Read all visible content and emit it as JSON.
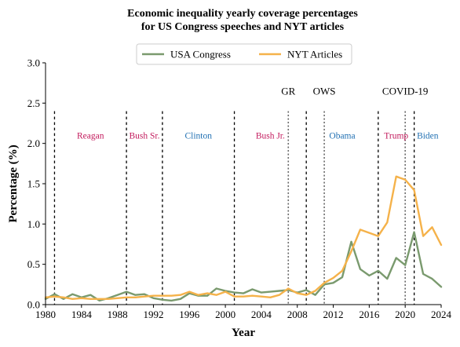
{
  "chart_data": {
    "type": "line",
    "title_line1": "Economic inequality yearly coverage percentages",
    "title_line2": "for US Congress speeches and NYT articles",
    "xlabel": "Year",
    "ylabel": "Percentage (%)",
    "xlim": [
      1980,
      2024
    ],
    "ylim": [
      0.0,
      3.0
    ],
    "xticks": [
      1980,
      1984,
      1988,
      1992,
      1996,
      2000,
      2004,
      2008,
      2012,
      2016,
      2020,
      2024
    ],
    "yticks": [
      0.0,
      0.5,
      1.0,
      1.5,
      2.0,
      2.5,
      3.0
    ],
    "ytick_labels": [
      "0.0",
      "0.5",
      "1.0",
      "1.5",
      "2.0",
      "2.5",
      "3.0"
    ],
    "legend_position": "top-center",
    "grid": false,
    "x": [
      1980,
      1981,
      1982,
      1983,
      1984,
      1985,
      1986,
      1987,
      1988,
      1989,
      1990,
      1991,
      1992,
      1993,
      1994,
      1995,
      1996,
      1997,
      1998,
      1999,
      2000,
      2001,
      2002,
      2003,
      2004,
      2005,
      2006,
      2007,
      2008,
      2009,
      2010,
      2011,
      2012,
      2013,
      2014,
      2015,
      2016,
      2017,
      2018,
      2019,
      2020,
      2021,
      2022,
      2023,
      2024
    ],
    "series": [
      {
        "name": "USA Congress",
        "color": "#7a9a6e",
        "values": [
          0.07,
          0.13,
          0.07,
          0.13,
          0.09,
          0.12,
          0.05,
          0.08,
          0.12,
          0.16,
          0.12,
          0.13,
          0.08,
          0.06,
          0.05,
          0.07,
          0.14,
          0.11,
          0.11,
          0.2,
          0.17,
          0.15,
          0.14,
          0.19,
          0.15,
          0.16,
          0.17,
          0.18,
          0.15,
          0.18,
          0.12,
          0.25,
          0.27,
          0.34,
          0.78,
          0.44,
          0.36,
          0.42,
          0.32,
          0.58,
          0.49,
          0.9,
          0.38,
          0.32,
          0.22
        ]
      },
      {
        "name": "NYT Articles",
        "color": "#f5b24a",
        "values": [
          0.09,
          0.1,
          0.09,
          0.07,
          0.08,
          0.07,
          0.07,
          0.07,
          0.08,
          0.09,
          0.09,
          0.1,
          0.11,
          0.11,
          0.11,
          0.12,
          0.16,
          0.12,
          0.14,
          0.12,
          0.16,
          0.1,
          0.1,
          0.11,
          0.1,
          0.09,
          0.12,
          0.2,
          0.14,
          0.12,
          0.17,
          0.27,
          0.33,
          0.42,
          0.66,
          0.93,
          0.89,
          0.85,
          1.02,
          1.59,
          1.55,
          1.42,
          0.85,
          0.96,
          0.74
        ]
      }
    ],
    "vlines": [
      {
        "x": 1981.0,
        "style": "dashed",
        "color": "#000000"
      },
      {
        "x": 1989.0,
        "style": "dashed",
        "color": "#000000"
      },
      {
        "x": 1993.0,
        "style": "dashed",
        "color": "#000000"
      },
      {
        "x": 2001.0,
        "style": "dashed",
        "color": "#000000"
      },
      {
        "x": 2009.0,
        "style": "dashed",
        "color": "#000000"
      },
      {
        "x": 2017.0,
        "style": "dashed",
        "color": "#000000"
      },
      {
        "x": 2021.0,
        "style": "dashed",
        "color": "#000000"
      },
      {
        "x": 2007.0,
        "style": "dotted",
        "color": "#666666"
      },
      {
        "x": 2011.0,
        "style": "dotted",
        "color": "#666666"
      },
      {
        "x": 2020.0,
        "style": "dotted",
        "color": "#666666"
      }
    ],
    "administrations": [
      {
        "label": "Reagan",
        "x": 1985.0,
        "color": "#c2185b"
      },
      {
        "label": "Bush Sr.",
        "x": 1991.0,
        "color": "#c2185b"
      },
      {
        "label": "Clinton",
        "x": 1997.0,
        "color": "#1f6fb2"
      },
      {
        "label": "Bush Jr.",
        "x": 2005.0,
        "color": "#c2185b"
      },
      {
        "label": "Obama",
        "x": 2013.0,
        "color": "#1f6fb2"
      },
      {
        "label": "Trump",
        "x": 2019.0,
        "color": "#c2185b"
      },
      {
        "label": "Biden",
        "x": 2022.5,
        "color": "#1f6fb2"
      }
    ],
    "administrations_y": 2.1,
    "events": [
      {
        "label": "GR",
        "x": 2007.0
      },
      {
        "label": "OWS",
        "x": 2011.0
      },
      {
        "label": "COVID-19",
        "x": 2020.0
      }
    ],
    "events_y": 2.65
  }
}
